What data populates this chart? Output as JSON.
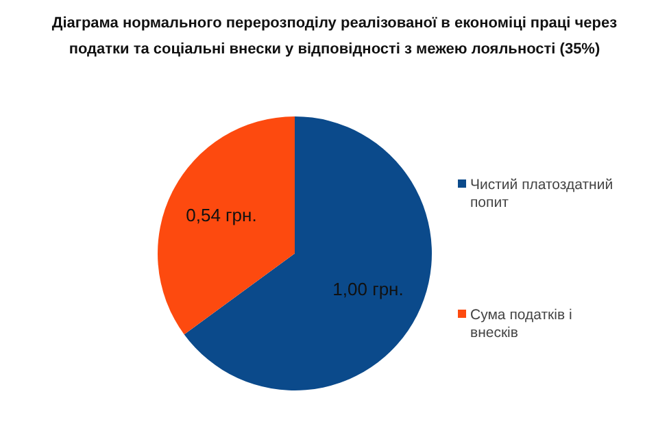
{
  "chart_data": {
    "type": "pie",
    "title": "Діаграма нормального перерозподілу реалізованої в економіці праці через податки та соціальні внески у відповідності з межею лояльності (35%)",
    "categories": [
      "Чистий платоздатний попит",
      "Сума податків і внесків"
    ],
    "values": [
      1.0,
      0.54
    ],
    "value_labels": [
      "1,00 грн.",
      "0,54 грн."
    ],
    "colors": [
      "#0b4a8b",
      "#fd4a0f"
    ],
    "legend": "right"
  }
}
